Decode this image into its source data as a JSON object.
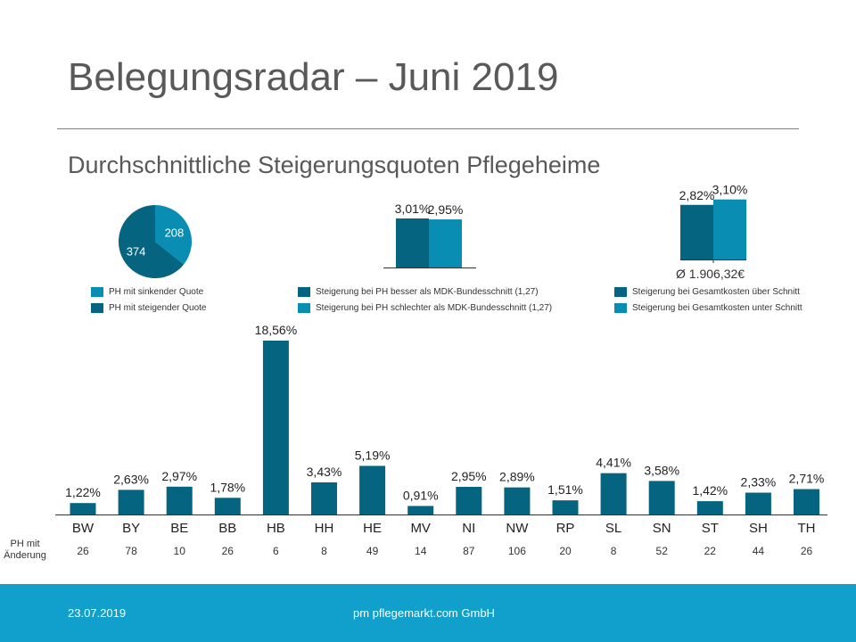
{
  "title": "Belegungsradar – Juni 2019",
  "subtitle": "Durchschnittliche Steigerungsquoten Pflegeheime",
  "colors": {
    "dark": "#056480",
    "light": "#0a8db3",
    "axis": "#333333",
    "footer": "#11a0cc"
  },
  "legend": {
    "pie_falling": "PH  mit sinkender Quote",
    "pie_rising": "PH  mit steigender Quote",
    "ph_better": "Steigerung bei PH  besser als MDK-Bundesschnitt (1,27)",
    "ph_worse": "Steigerung bei PH  schlechter als MDK-Bundesschnitt (1,27)",
    "cost_above": "Steigerung bei Gesamtkosten über Schnitt",
    "cost_below": "Steigerung bei Gesamtkosten unter Schnitt"
  },
  "average_label": "Ø 1.906,32€",
  "row_label": "PH mit Änderung",
  "footer": {
    "date": "23.07.2019",
    "company": "pm pflegemarkt.com GmbH"
  },
  "chart_data": [
    {
      "type": "pie",
      "title": "",
      "labels": [
        "PH mit sinkender Quote",
        "PH mit steigender Quote"
      ],
      "values": [
        208,
        374
      ],
      "value_labels": [
        "208",
        "374"
      ]
    },
    {
      "type": "bar",
      "title": "",
      "categories": [
        "besser als MDK-Bundesschnitt",
        "schlechter als MDK-Bundesschnitt"
      ],
      "values": [
        3.01,
        2.95
      ],
      "value_labels": [
        "3,01%",
        "2,95%"
      ],
      "ylim": [
        0,
        3.5
      ]
    },
    {
      "type": "bar",
      "title": "",
      "categories": [
        "Gesamtkosten über Schnitt",
        "Gesamtkosten unter Schnitt"
      ],
      "values": [
        2.82,
        3.1
      ],
      "value_labels": [
        "2,82%",
        "3,10%"
      ],
      "ylim": [
        0,
        3.5
      ]
    },
    {
      "type": "bar",
      "title": "",
      "xlabel": "",
      "ylabel": "",
      "categories": [
        "BW",
        "BY",
        "BE",
        "BB",
        "HB",
        "HH",
        "HE",
        "MV",
        "NI",
        "NW",
        "RP",
        "SL",
        "SN",
        "ST",
        "SH",
        "TH"
      ],
      "values": [
        1.22,
        2.63,
        2.97,
        1.78,
        18.56,
        3.43,
        5.19,
        0.91,
        2.95,
        2.89,
        1.51,
        4.41,
        3.58,
        1.42,
        2.33,
        2.71
      ],
      "value_labels": [
        "1,22%",
        "2,63%",
        "2,97%",
        "1,78%",
        "18,56%",
        "3,43%",
        "5,19%",
        "0,91%",
        "2,95%",
        "2,89%",
        "1,51%",
        "4,41%",
        "3,58%",
        "1,42%",
        "2,33%",
        "2,71%"
      ],
      "ph_counts": [
        "26",
        "78",
        "10",
        "26",
        "6",
        "8",
        "49",
        "14",
        "87",
        "106",
        "20",
        "8",
        "52",
        "22",
        "44",
        "26"
      ],
      "ylim": [
        0,
        18.56
      ]
    }
  ]
}
